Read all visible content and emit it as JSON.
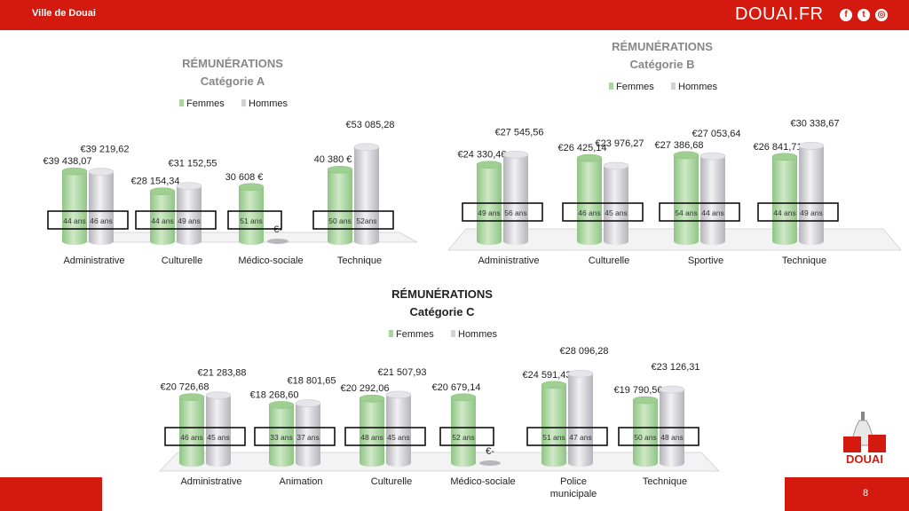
{
  "header": {
    "city": "Ville de Douai",
    "brand": "DOUAI.FR"
  },
  "social_icons": [
    "facebook-icon",
    "twitter-icon",
    "instagram-icon"
  ],
  "footer": {
    "page_number": "8",
    "logo_text": "DOUAI"
  },
  "colors": {
    "brand_red": "#d41a0e",
    "femmes": "#b8dcb0",
    "hommes": "#dcdce0"
  },
  "chart_data": [
    {
      "type": "bar",
      "title": "RÉMUNÉRATIONS",
      "subtitle": "Catégorie A",
      "legend": [
        "Femmes",
        "Hommes"
      ],
      "legend_position": "top",
      "categories": [
        "Administrative",
        "Culturelle",
        "Médico-sociale",
        "Technique"
      ],
      "series": [
        {
          "name": "Femmes",
          "values": [
            39438.07,
            28154.34,
            30608,
            40380
          ],
          "labels": [
            "€39 438,07",
            "€28 154,34",
            "30 608 €",
            "40 380 €"
          ],
          "ages": [
            "44 ans",
            "44 ans",
            "51 ans",
            "50 ans"
          ]
        },
        {
          "name": "Hommes",
          "values": [
            39219.62,
            31152.55,
            0,
            53085.28
          ],
          "labels": [
            "€39 219,62",
            "€31 152,55",
            "€-",
            "€53 085,28"
          ],
          "ages": [
            "46 ans",
            "49 ans",
            "",
            "52ans"
          ]
        }
      ]
    },
    {
      "type": "bar",
      "title": "RÉMUNÉRATIONS",
      "subtitle": "Catégorie B",
      "legend": [
        "Femmes",
        "Hommes"
      ],
      "legend_position": "top",
      "categories": [
        "Administrative",
        "Culturelle",
        "Sportive",
        "Technique"
      ],
      "series": [
        {
          "name": "Femmes",
          "values": [
            24330.46,
            26425.14,
            27386.68,
            26841.71
          ],
          "labels": [
            "€24 330,46",
            "€26 425,14",
            "€27 386,68",
            "€26 841,71"
          ],
          "ages": [
            "49 ans",
            "46 ans",
            "54 ans",
            "44 ans"
          ]
        },
        {
          "name": "Hommes",
          "values": [
            27545.56,
            23976.27,
            27053.64,
            30338.67
          ],
          "labels": [
            "€27 545,56",
            "€23 976,27",
            "€27 053,64",
            "€30 338,67"
          ],
          "ages": [
            "56 ans",
            "45 ans",
            "44 ans",
            "49 ans"
          ]
        }
      ]
    },
    {
      "type": "bar",
      "title": "RÉMUNÉRATIONS",
      "subtitle": "Catégorie C",
      "legend": [
        "Femmes",
        "Hommes"
      ],
      "legend_position": "top",
      "categories": [
        "Administrative",
        "Animation",
        "Culturelle",
        "Médico-sociale",
        "Police municipale",
        "Technique"
      ],
      "series": [
        {
          "name": "Femmes",
          "values": [
            20726.68,
            18268.6,
            20292.06,
            20679.14,
            24591.43,
            19790.56
          ],
          "labels": [
            "€20 726,68",
            "€18 268,60",
            "€20 292,06",
            "€20 679,14",
            "€24 591,43",
            "€19 790,56"
          ],
          "ages": [
            "46 ans",
            "33 ans",
            "48 ans",
            "52 ans",
            "51 ans",
            "50 ans"
          ]
        },
        {
          "name": "Hommes",
          "values": [
            21283.88,
            18801.65,
            21507.93,
            0,
            28096.28,
            23126.31
          ],
          "labels": [
            "€21 283,88",
            "€18 801,65",
            "€21 507,93",
            "€-",
            "€28 096,28",
            "€23 126,31"
          ],
          "ages": [
            "45 ans",
            "37 ans",
            "45 ans",
            "",
            "47 ans",
            "48 ans"
          ]
        }
      ]
    }
  ]
}
